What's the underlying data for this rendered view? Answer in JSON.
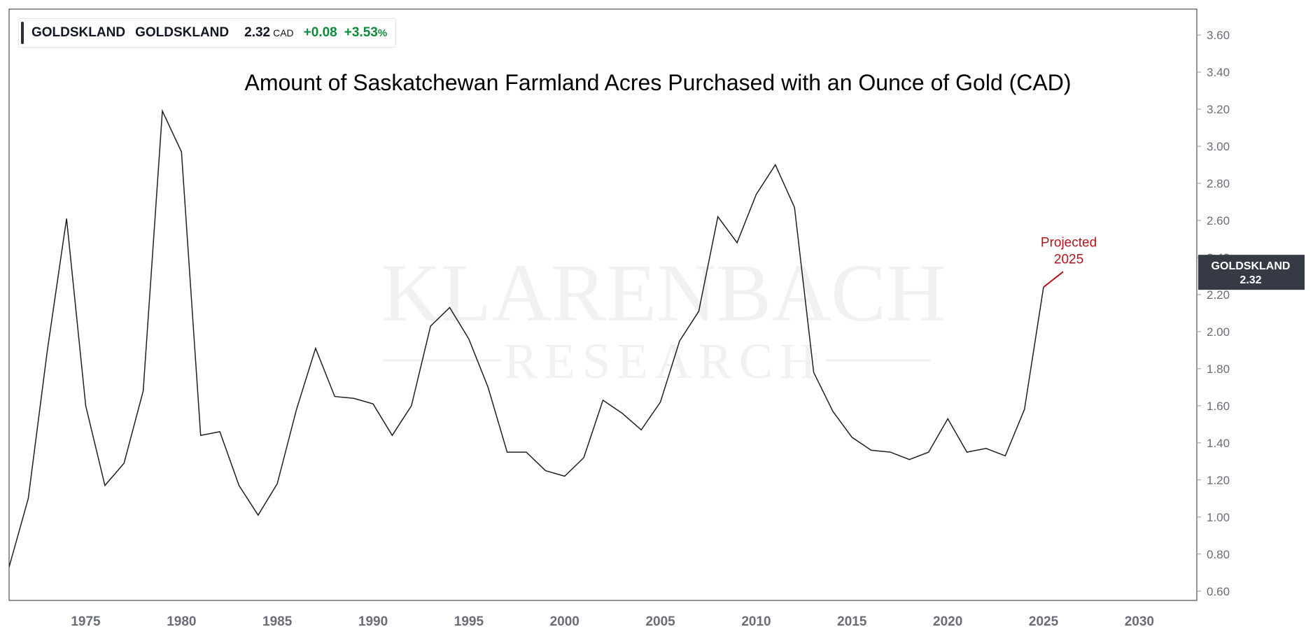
{
  "legend": {
    "symbol1": "GOLDSKLAND",
    "symbol2": "GOLDSKLAND",
    "value": "2.32",
    "currency": "CAD",
    "change": "+0.08",
    "change_pct": "+3.53",
    "pct_sign": "%"
  },
  "price_tag": {
    "symbol": "GOLDSKLAND",
    "value": "2.32"
  },
  "watermark": {
    "line1": "KLARENBACH",
    "line2": "RESEARCH"
  },
  "colors": {
    "line": "#1f1f1f",
    "positive": "#0f8a3b",
    "annotation": "#b1161c",
    "tag_bg": "#363a45",
    "axis_text": "#6a6d78"
  },
  "chart_data": {
    "type": "line",
    "title": "Amount of Saskatchewan Farmland Acres Purchased with an Ounce of Gold (CAD)",
    "xlabel": "",
    "ylabel": "",
    "xlim": [
      1971,
      2033
    ],
    "ylim": [
      0.55,
      3.74
    ],
    "x_ticks": [
      1975,
      1980,
      1985,
      1990,
      1995,
      2000,
      2005,
      2010,
      2015,
      2020,
      2025,
      2030
    ],
    "y_ticks": [
      "0.60",
      "0.80",
      "1.00",
      "1.20",
      "1.40",
      "1.60",
      "1.80",
      "2.00",
      "2.20",
      "2.40",
      "2.60",
      "2.80",
      "3.00",
      "3.20",
      "3.40",
      "3.60"
    ],
    "y_axis_side": "right",
    "grid": false,
    "series": [
      {
        "x": [
          1971,
          1972,
          1973,
          1974,
          1975,
          1976,
          1977,
          1978,
          1979,
          1980,
          1981,
          1982,
          1983,
          1984,
          1985,
          1986,
          1987,
          1988,
          1989,
          1990,
          1991,
          1992,
          1993,
          1994,
          1995,
          1996,
          1997,
          1998,
          1999,
          2000,
          2001,
          2002,
          2003,
          2004,
          2005,
          2006,
          2007,
          2008,
          2009,
          2010,
          2011,
          2012,
          2013,
          2014,
          2015,
          2016,
          2017,
          2018,
          2019,
          2020,
          2021,
          2022,
          2023,
          2024,
          2025
        ],
        "y": [
          0.73,
          1.1,
          1.9,
          2.61,
          1.6,
          1.17,
          1.29,
          1.68,
          3.19,
          2.97,
          1.44,
          1.46,
          1.17,
          1.01,
          1.18,
          1.58,
          1.91,
          1.65,
          1.64,
          1.61,
          1.44,
          1.6,
          2.03,
          2.13,
          1.96,
          1.7,
          1.35,
          1.35,
          1.25,
          1.22,
          1.32,
          1.63,
          1.56,
          1.47,
          1.62,
          1.95,
          2.11,
          2.62,
          2.48,
          2.74,
          2.9,
          2.67,
          1.78,
          1.57,
          1.43,
          1.36,
          1.35,
          1.31,
          1.35,
          1.53,
          1.35,
          1.37,
          1.33,
          1.58,
          2.24
        ]
      }
    ],
    "annotations": [
      {
        "text_line1": "Projected",
        "text_line2": "2025",
        "x": 2025,
        "y": 2.24
      }
    ]
  }
}
